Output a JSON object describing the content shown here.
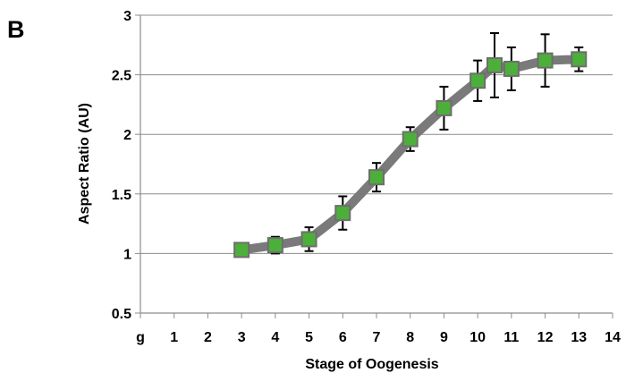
{
  "panel_label": "B",
  "chart_data": {
    "type": "line",
    "title": "",
    "xlabel": "Stage of Oogenesis",
    "ylabel": "Aspect Ratio (AU)",
    "x_tick_labels": [
      "g",
      "1",
      "2",
      "3",
      "4",
      "5",
      "6",
      "7",
      "8",
      "9",
      "10",
      "11",
      "12",
      "13",
      "14"
    ],
    "y_tick_labels": [
      "0.5",
      "1",
      "1.5",
      "2",
      "2.5",
      "3"
    ],
    "xlim": [
      0,
      14
    ],
    "ylim": [
      0.5,
      3
    ],
    "y_ticks": [
      0.5,
      1,
      1.5,
      2,
      2.5,
      3
    ],
    "grid": true,
    "series": [
      {
        "x": [
          3,
          4,
          5,
          6,
          7,
          8,
          9,
          10,
          10.5,
          11,
          12,
          13
        ],
        "y": [
          1.03,
          1.07,
          1.12,
          1.34,
          1.64,
          1.96,
          2.22,
          2.45,
          2.58,
          2.55,
          2.62,
          2.63
        ],
        "error": [
          0.03,
          0.07,
          0.1,
          0.14,
          0.12,
          0.1,
          0.18,
          0.17,
          0.27,
          0.18,
          0.22,
          0.1
        ],
        "line_color": "#7a7a7a",
        "marker_color": "#4caf3a"
      }
    ]
  }
}
